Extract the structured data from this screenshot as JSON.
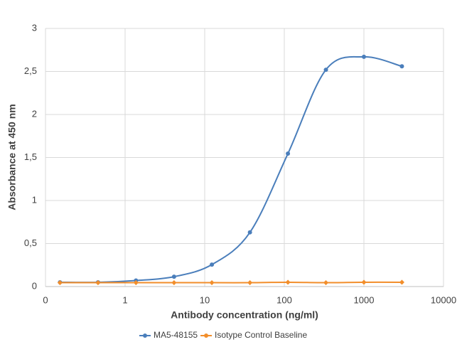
{
  "chart_data": {
    "type": "line",
    "x_label": "Antibody concentration (ng/ml)",
    "y_label": "Absorbance at 450 nm",
    "x_scale": "log",
    "x": [
      0.152,
      0.457,
      1.37,
      4.12,
      12.3,
      37,
      111,
      333,
      1000,
      3000
    ],
    "series": [
      {
        "name": "MA5-48155",
        "color": "#4a7ebb",
        "values": [
          0.05,
          0.05,
          0.07,
          0.115,
          0.255,
          0.63,
          1.545,
          2.52,
          2.67,
          2.56
        ]
      },
      {
        "name": "Isotype Control Baseline",
        "color": "#f28e2b",
        "values": [
          0.045,
          0.045,
          0.045,
          0.045,
          0.045,
          0.045,
          0.05,
          0.045,
          0.05,
          0.05
        ]
      }
    ],
    "xlim": [
      0.1,
      10000
    ],
    "xticks": [
      {
        "value": 0.1,
        "label": "0"
      },
      1,
      10,
      100,
      1000,
      10000
    ],
    "ylim": [
      0,
      3
    ],
    "yticks": [
      0,
      {
        "value": 0.5,
        "label": "0,5"
      },
      1,
      {
        "value": 1.5,
        "label": "1,5"
      },
      2,
      {
        "value": 2.5,
        "label": "2,5"
      },
      3
    ],
    "grid": true,
    "legend": "bottom"
  }
}
